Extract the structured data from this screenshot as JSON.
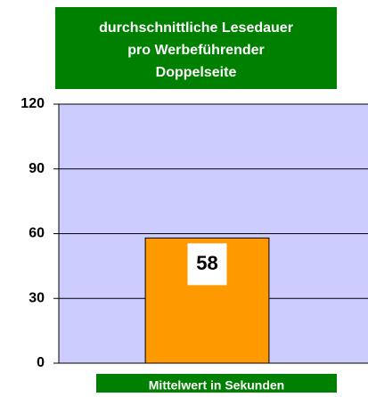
{
  "chart_data": {
    "type": "bar",
    "title": [
      "durchschnittliche Lesedauer",
      "pro Werbeführender",
      "Doppelseite"
    ],
    "xlabel": "Mittelwert in Sekunden",
    "categories": [
      null
    ],
    "values": [
      58
    ],
    "color": "#ff9900",
    "ylim": [
      0,
      120
    ],
    "yticks": [
      0,
      30,
      60,
      90,
      120
    ],
    "grid": true
  }
}
